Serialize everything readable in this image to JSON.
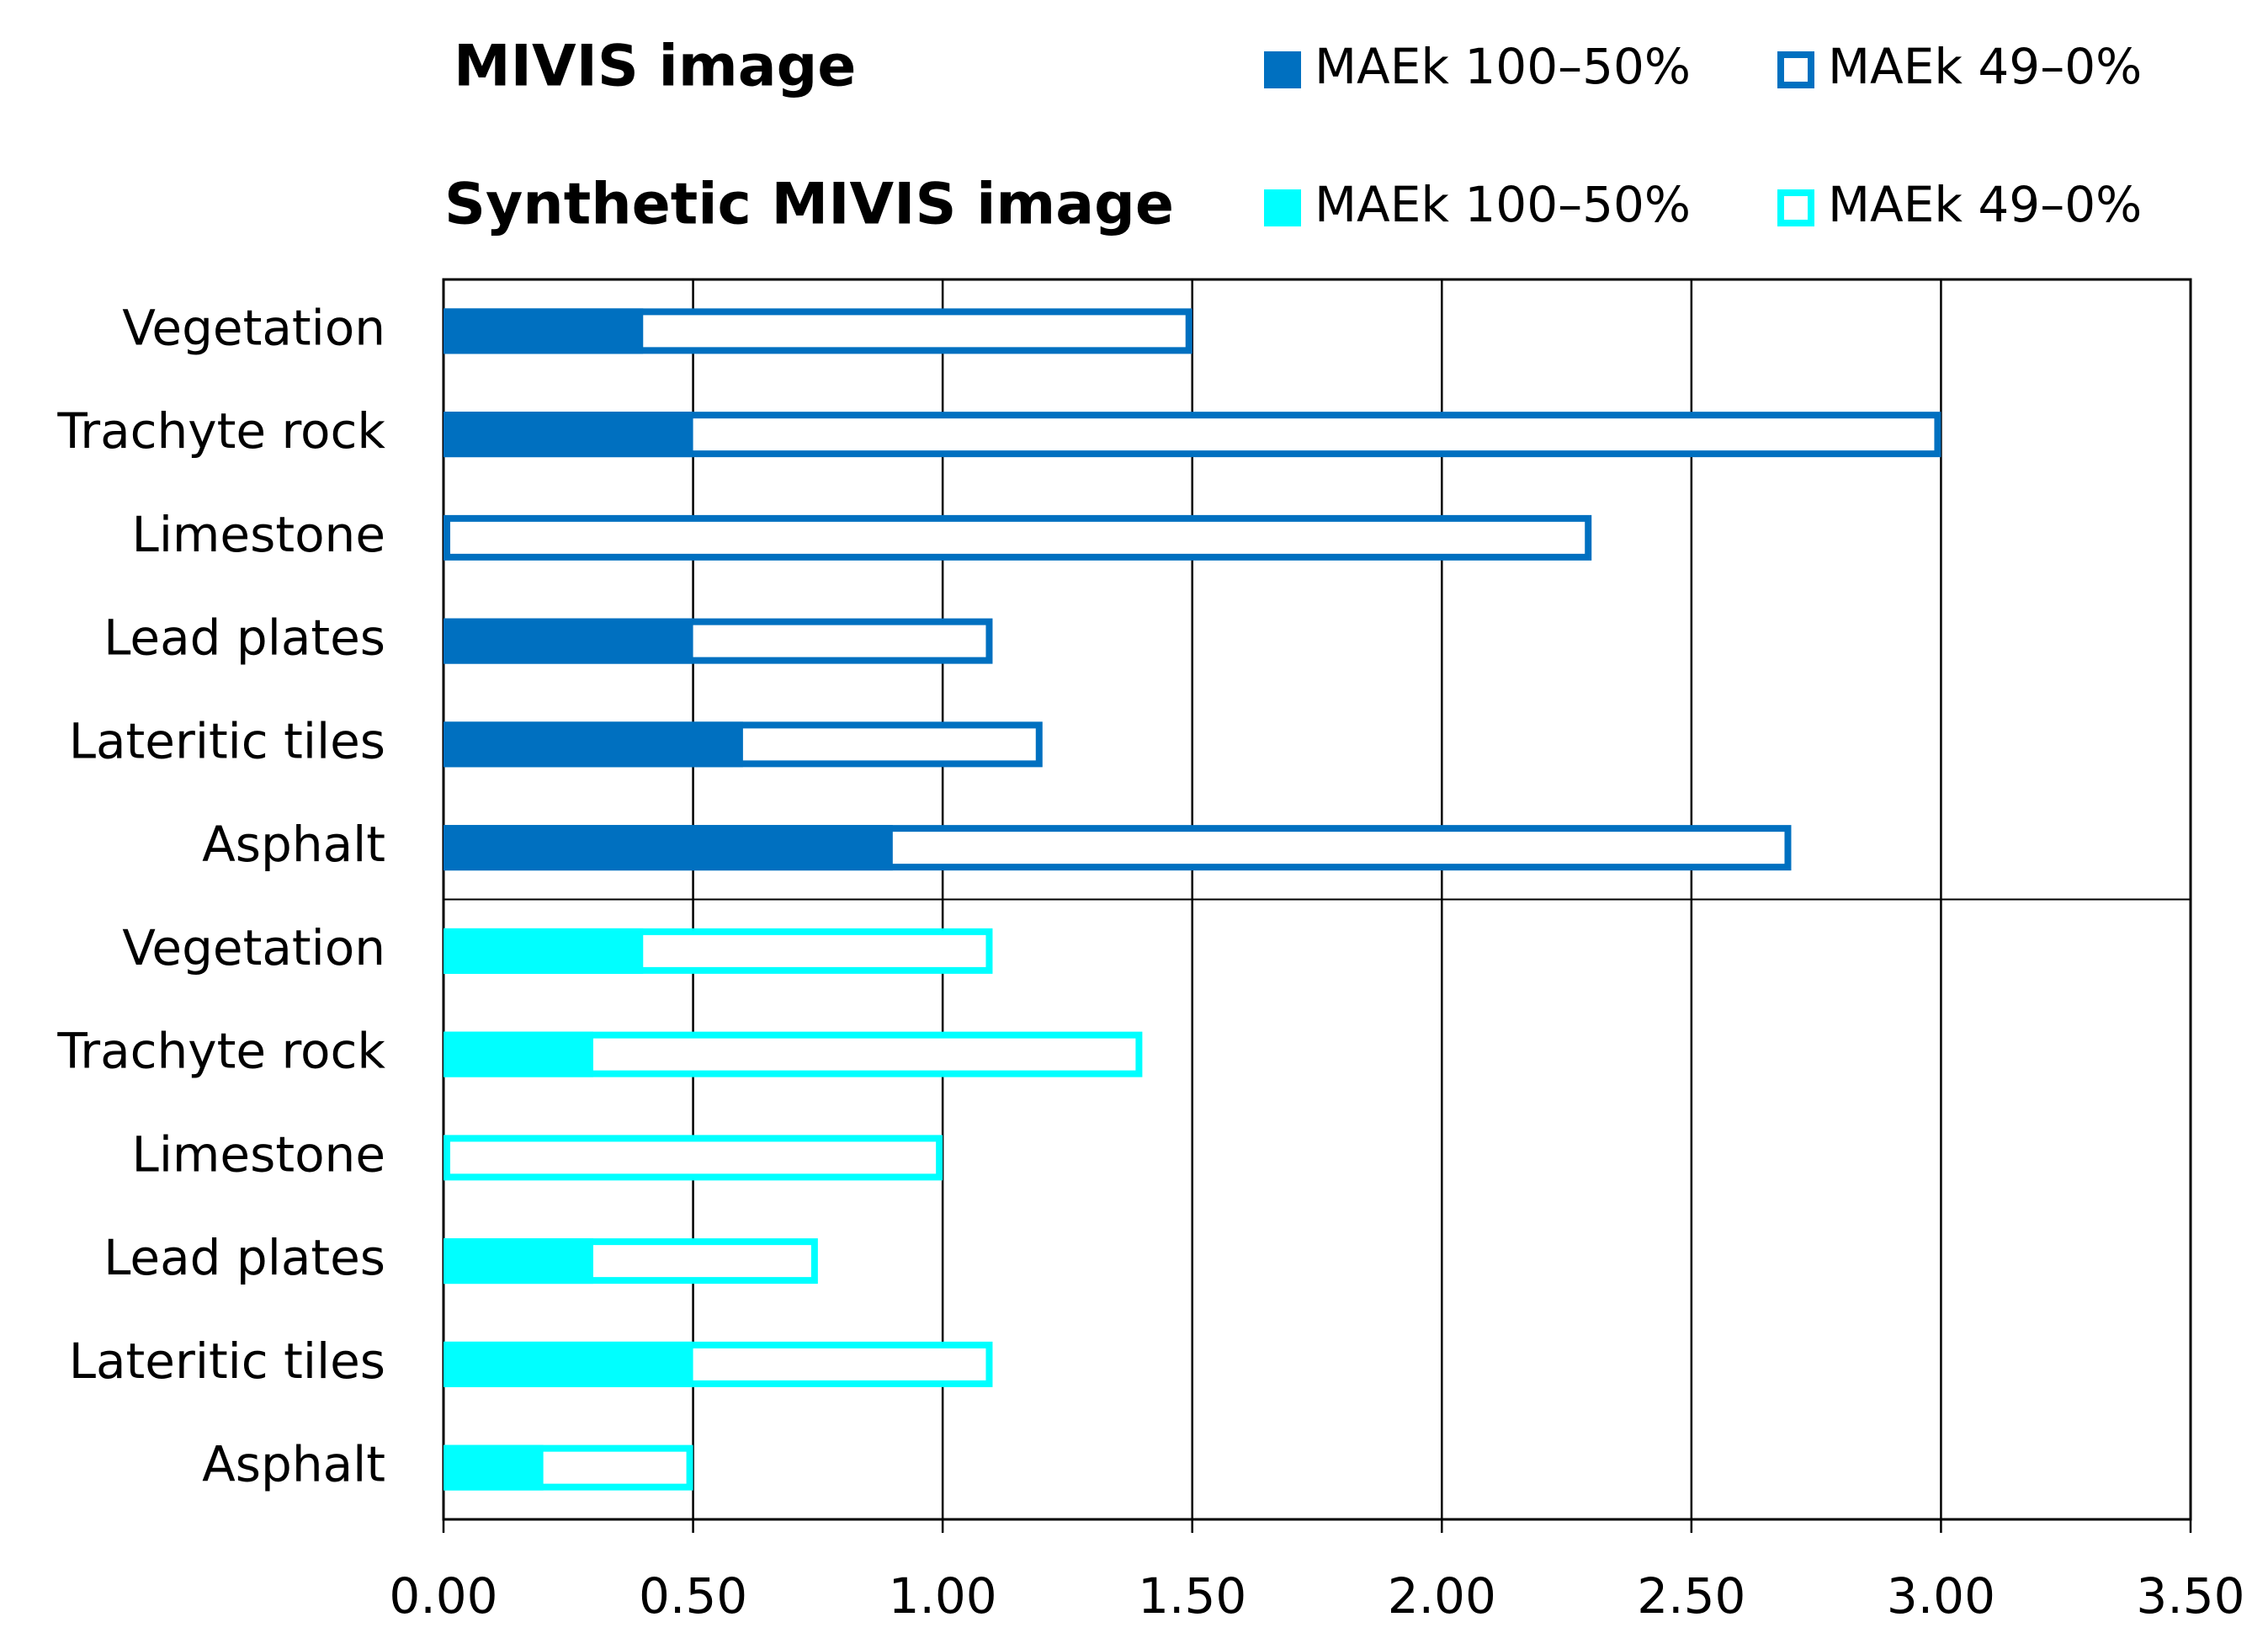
{
  "chart_data": {
    "type": "grouped-overlay-bar",
    "xlim": [
      0,
      3.5
    ],
    "xticks": [
      {
        "value": 0,
        "label": "0.00"
      },
      {
        "value": 0.5,
        "label": "0.50"
      },
      {
        "value": 1,
        "label": "1.00"
      },
      {
        "value": 1.5,
        "label": "1.50"
      },
      {
        "value": 2,
        "label": "2.00"
      },
      {
        "value": 2.5,
        "label": "2.50"
      },
      {
        "value": 3,
        "label": "3.00"
      },
      {
        "value": 3.5,
        "label": "3.50"
      }
    ],
    "grid": true,
    "groups": [
      {
        "title": "MIVIS image",
        "categories": [
          "Vegetation",
          "Trachyte rock",
          "Limestone",
          "Lead plates",
          "Lateritic tiles",
          "Asphalt"
        ],
        "series": [
          {
            "name": "MAEk 49–0%",
            "color": "#0070c0",
            "style": "outline",
            "values": [
              1.5,
              3.0,
              2.3,
              1.1,
              1.2,
              2.7
            ]
          },
          {
            "name": "MAEk 100–50%",
            "color": "#0070c0",
            "style": "filled",
            "values": [
              0.4,
              0.5,
              0,
              0.5,
              0.6,
              0.9
            ]
          }
        ]
      },
      {
        "title": "Synthetic MIVIS image",
        "categories": [
          "Vegetation",
          "Trachyte rock",
          "Limestone",
          "Lead plates",
          "Lateritic tiles",
          "Asphalt"
        ],
        "series": [
          {
            "name": "MAEk 49–0%",
            "color": "#00ffff",
            "style": "outline",
            "values": [
              1.1,
              1.4,
              1.0,
              0.75,
              1.1,
              0.5
            ]
          },
          {
            "name": "MAEk 100–50%",
            "color": "#00ffff",
            "style": "filled",
            "values": [
              0.4,
              0.3,
              0,
              0.3,
              0.5,
              0.2
            ]
          }
        ]
      }
    ]
  }
}
